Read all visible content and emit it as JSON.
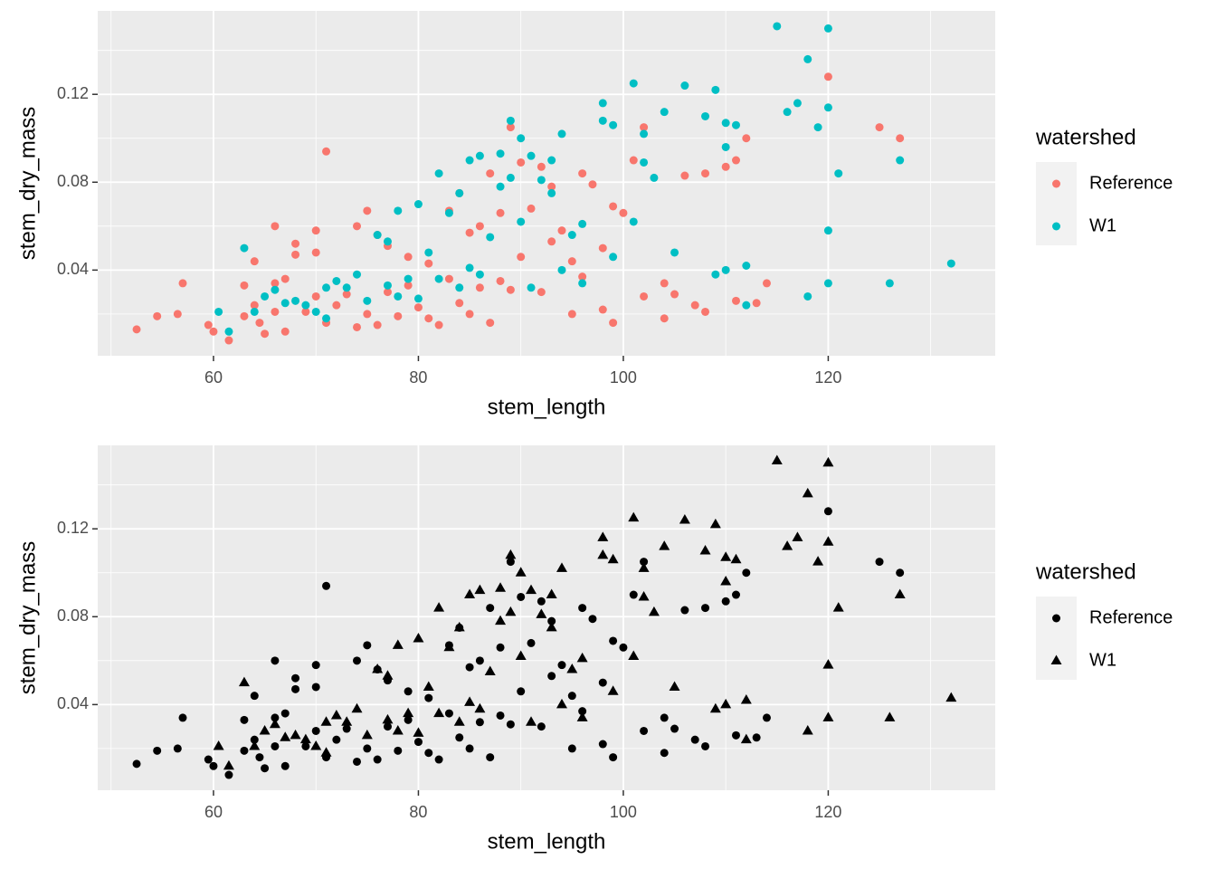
{
  "chart_data": [
    {
      "type": "scatter",
      "x_label": "stem_length",
      "y_label": "stem_dry_mass",
      "legend_title": "watershed",
      "legend_position": "right",
      "xlim": [
        48.7,
        136.3
      ],
      "ylim": [
        0.001,
        0.158
      ],
      "xticks": [
        60,
        80,
        100,
        120
      ],
      "yticks": [
        0.04,
        0.08,
        0.12
      ],
      "xminor": [
        50,
        70,
        90,
        110,
        130
      ],
      "yminor": [
        0.02,
        0.06,
        0.1,
        0.14
      ],
      "grid": true,
      "panel_color": "#ebebeb",
      "series": [
        {
          "name": "Reference",
          "color": "#F8766D",
          "shape": "circle",
          "x": [
            52.5,
            54.5,
            56.5,
            57,
            59.5,
            60,
            61.5,
            63,
            63,
            64,
            64,
            64.5,
            65,
            66,
            66,
            66,
            67,
            67,
            68,
            68,
            69,
            70,
            70,
            70,
            71,
            71,
            72,
            73,
            74,
            74,
            75,
            75,
            76,
            76,
            77,
            77,
            78,
            79,
            79,
            80,
            81,
            81,
            82,
            83,
            83,
            84,
            84,
            85,
            85,
            86,
            86,
            87,
            87,
            88,
            88,
            89,
            89,
            90,
            90,
            91,
            92,
            92,
            93,
            93,
            94,
            95,
            95,
            96,
            96,
            97,
            98,
            98,
            99,
            99,
            100,
            101,
            102,
            102,
            104,
            104,
            105,
            106,
            107,
            108,
            108,
            110,
            111,
            111,
            112,
            113,
            114,
            120,
            125,
            127
          ],
          "values": [
            0.013,
            0.019,
            0.02,
            0.034,
            0.015,
            0.012,
            0.008,
            0.019,
            0.033,
            0.044,
            0.024,
            0.016,
            0.011,
            0.06,
            0.034,
            0.021,
            0.036,
            0.012,
            0.052,
            0.047,
            0.021,
            0.058,
            0.048,
            0.028,
            0.094,
            0.016,
            0.024,
            0.029,
            0.06,
            0.014,
            0.067,
            0.02,
            0.056,
            0.015,
            0.051,
            0.03,
            0.019,
            0.046,
            0.033,
            0.023,
            0.043,
            0.018,
            0.015,
            0.067,
            0.036,
            0.075,
            0.025,
            0.057,
            0.02,
            0.06,
            0.032,
            0.084,
            0.016,
            0.066,
            0.035,
            0.105,
            0.031,
            0.089,
            0.046,
            0.068,
            0.087,
            0.03,
            0.078,
            0.053,
            0.058,
            0.044,
            0.02,
            0.084,
            0.037,
            0.079,
            0.05,
            0.022,
            0.069,
            0.016,
            0.066,
            0.09,
            0.105,
            0.028,
            0.034,
            0.018,
            0.029,
            0.083,
            0.024,
            0.084,
            0.021,
            0.087,
            0.09,
            0.026,
            0.1,
            0.025,
            0.034,
            0.128,
            0.105,
            0.1
          ]
        },
        {
          "name": "W1",
          "color": "#00BFC4",
          "shape": "circle",
          "x": [
            60.5,
            61.5,
            63,
            64,
            65,
            66,
            67,
            68,
            69,
            70,
            71,
            71,
            72,
            73,
            74,
            75,
            76,
            77,
            77,
            78,
            78,
            79,
            80,
            80,
            81,
            82,
            82,
            83,
            84,
            84,
            85,
            85,
            86,
            86,
            87,
            88,
            88,
            89,
            89,
            90,
            90,
            91,
            91,
            92,
            93,
            93,
            94,
            94,
            95,
            96,
            96,
            98,
            98,
            99,
            99,
            101,
            101,
            102,
            102,
            103,
            104,
            105,
            106,
            108,
            109,
            109,
            110,
            110,
            110,
            111,
            112,
            112,
            115,
            116,
            117,
            118,
            118,
            119,
            120,
            120,
            120,
            120,
            121,
            126,
            127,
            132
          ],
          "values": [
            0.021,
            0.012,
            0.05,
            0.021,
            0.028,
            0.031,
            0.025,
            0.026,
            0.024,
            0.021,
            0.032,
            0.018,
            0.035,
            0.032,
            0.038,
            0.026,
            0.056,
            0.053,
            0.033,
            0.067,
            0.028,
            0.036,
            0.07,
            0.027,
            0.048,
            0.084,
            0.036,
            0.066,
            0.075,
            0.032,
            0.09,
            0.041,
            0.092,
            0.038,
            0.055,
            0.078,
            0.093,
            0.108,
            0.082,
            0.1,
            0.062,
            0.092,
            0.032,
            0.081,
            0.09,
            0.075,
            0.102,
            0.04,
            0.056,
            0.061,
            0.034,
            0.116,
            0.108,
            0.106,
            0.046,
            0.125,
            0.062,
            0.102,
            0.089,
            0.082,
            0.112,
            0.048,
            0.124,
            0.11,
            0.122,
            0.038,
            0.107,
            0.096,
            0.04,
            0.106,
            0.042,
            0.024,
            0.151,
            0.112,
            0.116,
            0.136,
            0.028,
            0.105,
            0.15,
            0.114,
            0.058,
            0.034,
            0.084,
            0.034,
            0.09,
            0.043
          ]
        }
      ]
    },
    {
      "type": "scatter",
      "x_label": "stem_length",
      "y_label": "stem_dry_mass",
      "legend_title": "watershed",
      "legend_position": "right",
      "xlim": [
        48.7,
        136.3
      ],
      "ylim": [
        0.001,
        0.158
      ],
      "xticks": [
        60,
        80,
        100,
        120
      ],
      "yticks": [
        0.04,
        0.08,
        0.12
      ],
      "xminor": [
        50,
        70,
        90,
        110,
        130
      ],
      "yminor": [
        0.02,
        0.06,
        0.1,
        0.14
      ],
      "grid": true,
      "panel_color": "#ebebeb",
      "series": [
        {
          "name": "Reference",
          "color": "#000000",
          "shape": "circle",
          "x": [
            52.5,
            54.5,
            56.5,
            57,
            59.5,
            60,
            61.5,
            63,
            63,
            64,
            64,
            64.5,
            65,
            66,
            66,
            66,
            67,
            67,
            68,
            68,
            69,
            70,
            70,
            70,
            71,
            71,
            72,
            73,
            74,
            74,
            75,
            75,
            76,
            76,
            77,
            77,
            78,
            79,
            79,
            80,
            81,
            81,
            82,
            83,
            83,
            84,
            84,
            85,
            85,
            86,
            86,
            87,
            87,
            88,
            88,
            89,
            89,
            90,
            90,
            91,
            92,
            92,
            93,
            93,
            94,
            95,
            95,
            96,
            96,
            97,
            98,
            98,
            99,
            99,
            100,
            101,
            102,
            102,
            104,
            104,
            105,
            106,
            107,
            108,
            108,
            110,
            111,
            111,
            112,
            113,
            114,
            120,
            125,
            127
          ],
          "values": [
            0.013,
            0.019,
            0.02,
            0.034,
            0.015,
            0.012,
            0.008,
            0.019,
            0.033,
            0.044,
            0.024,
            0.016,
            0.011,
            0.06,
            0.034,
            0.021,
            0.036,
            0.012,
            0.052,
            0.047,
            0.021,
            0.058,
            0.048,
            0.028,
            0.094,
            0.016,
            0.024,
            0.029,
            0.06,
            0.014,
            0.067,
            0.02,
            0.056,
            0.015,
            0.051,
            0.03,
            0.019,
            0.046,
            0.033,
            0.023,
            0.043,
            0.018,
            0.015,
            0.067,
            0.036,
            0.075,
            0.025,
            0.057,
            0.02,
            0.06,
            0.032,
            0.084,
            0.016,
            0.066,
            0.035,
            0.105,
            0.031,
            0.089,
            0.046,
            0.068,
            0.087,
            0.03,
            0.078,
            0.053,
            0.058,
            0.044,
            0.02,
            0.084,
            0.037,
            0.079,
            0.05,
            0.022,
            0.069,
            0.016,
            0.066,
            0.09,
            0.105,
            0.028,
            0.034,
            0.018,
            0.029,
            0.083,
            0.024,
            0.084,
            0.021,
            0.087,
            0.09,
            0.026,
            0.1,
            0.025,
            0.034,
            0.128,
            0.105,
            0.1
          ]
        },
        {
          "name": "W1",
          "color": "#000000",
          "shape": "triangle",
          "x": [
            60.5,
            61.5,
            63,
            64,
            65,
            66,
            67,
            68,
            69,
            70,
            71,
            71,
            72,
            73,
            74,
            75,
            76,
            77,
            77,
            78,
            78,
            79,
            80,
            80,
            81,
            82,
            82,
            83,
            84,
            84,
            85,
            85,
            86,
            86,
            87,
            88,
            88,
            89,
            89,
            90,
            90,
            91,
            91,
            92,
            93,
            93,
            94,
            94,
            95,
            96,
            96,
            98,
            98,
            99,
            99,
            101,
            101,
            102,
            102,
            103,
            104,
            105,
            106,
            108,
            109,
            109,
            110,
            110,
            110,
            111,
            112,
            112,
            115,
            116,
            117,
            118,
            118,
            119,
            120,
            120,
            120,
            120,
            121,
            126,
            127,
            132
          ],
          "values": [
            0.021,
            0.012,
            0.05,
            0.021,
            0.028,
            0.031,
            0.025,
            0.026,
            0.024,
            0.021,
            0.032,
            0.018,
            0.035,
            0.032,
            0.038,
            0.026,
            0.056,
            0.053,
            0.033,
            0.067,
            0.028,
            0.036,
            0.07,
            0.027,
            0.048,
            0.084,
            0.036,
            0.066,
            0.075,
            0.032,
            0.09,
            0.041,
            0.092,
            0.038,
            0.055,
            0.078,
            0.093,
            0.108,
            0.082,
            0.1,
            0.062,
            0.092,
            0.032,
            0.081,
            0.09,
            0.075,
            0.102,
            0.04,
            0.056,
            0.061,
            0.034,
            0.116,
            0.108,
            0.106,
            0.046,
            0.125,
            0.062,
            0.102,
            0.089,
            0.082,
            0.112,
            0.048,
            0.124,
            0.11,
            0.122,
            0.038,
            0.107,
            0.096,
            0.04,
            0.106,
            0.042,
            0.024,
            0.151,
            0.112,
            0.116,
            0.136,
            0.028,
            0.105,
            0.15,
            0.114,
            0.058,
            0.034,
            0.084,
            0.034,
            0.09,
            0.043
          ]
        }
      ]
    }
  ]
}
